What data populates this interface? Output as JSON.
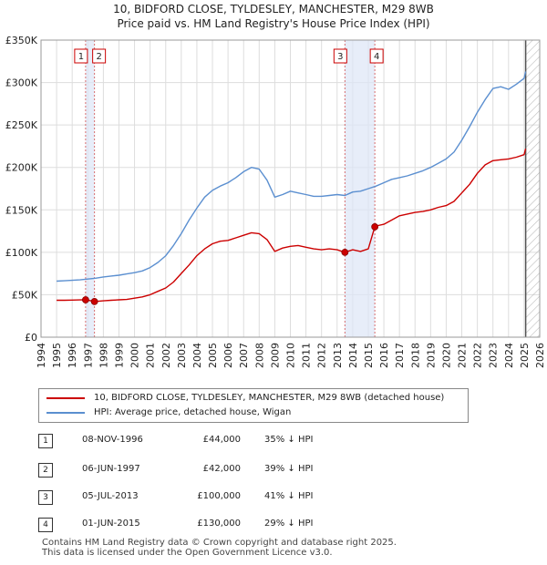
{
  "title_line1": "10, BIDFORD CLOSE, TYLDESLEY, MANCHESTER, M29 8WB",
  "title_line2": "Price paid vs. HM Land Registry's House Price Index (HPI)",
  "chart_data": {
    "type": "line",
    "xlim": [
      1994,
      2026
    ],
    "ylim": [
      0,
      350000
    ],
    "yticks": [
      0,
      50000,
      100000,
      150000,
      200000,
      250000,
      300000,
      350000
    ],
    "ytick_labels": [
      "£0",
      "£50K",
      "£100K",
      "£150K",
      "£200K",
      "£250K",
      "£300K",
      "£350K"
    ],
    "xticks": [
      1994,
      1995,
      1996,
      1997,
      1998,
      1999,
      2000,
      2001,
      2002,
      2003,
      2004,
      2005,
      2006,
      2007,
      2008,
      2009,
      2010,
      2011,
      2012,
      2013,
      2014,
      2015,
      2016,
      2017,
      2018,
      2019,
      2020,
      2021,
      2022,
      2023,
      2024,
      2025,
      2026
    ],
    "grid": true,
    "shaded_ranges": [
      [
        1996.86,
        1997.43
      ],
      [
        2013.5,
        2015.42
      ]
    ],
    "future_hatch_from": 2025.1,
    "series": [
      {
        "name": "10, BIDFORD CLOSE, TYLDESLEY, MANCHESTER, M29 8WB (detached house)",
        "color": "#cc0000",
        "x": [
          1995.0,
          1995.5,
          1996.0,
          1996.5,
          1996.86,
          1997.0,
          1997.43,
          1998.0,
          1998.5,
          1999.0,
          1999.5,
          2000.0,
          2000.5,
          2001.0,
          2001.5,
          2002.0,
          2002.5,
          2003.0,
          2003.5,
          2004.0,
          2004.5,
          2005.0,
          2005.5,
          2006.0,
          2006.5,
          2007.0,
          2007.5,
          2008.0,
          2008.5,
          2009.0,
          2009.5,
          2010.0,
          2010.5,
          2011.0,
          2011.5,
          2012.0,
          2012.5,
          2013.0,
          2013.5,
          2014.0,
          2014.5,
          2015.0,
          2015.42,
          2015.5,
          2016.0,
          2016.5,
          2017.0,
          2017.5,
          2018.0,
          2018.5,
          2019.0,
          2019.5,
          2020.0,
          2020.5,
          2021.0,
          2021.5,
          2022.0,
          2022.5,
          2023.0,
          2023.5,
          2024.0,
          2024.5,
          2025.0,
          2025.1
        ],
        "values": [
          43500,
          43500,
          43700,
          43900,
          44000,
          43700,
          42000,
          42800,
          43500,
          44000,
          44500,
          46000,
          47500,
          50000,
          54000,
          58000,
          65000,
          75000,
          85000,
          96000,
          104000,
          110000,
          113000,
          114000,
          117000,
          120000,
          123000,
          122000,
          115000,
          101000,
          105000,
          107000,
          108000,
          106000,
          104000,
          103000,
          104000,
          103000,
          100000,
          103000,
          101000,
          104000,
          130000,
          131000,
          133000,
          138000,
          143000,
          145000,
          147000,
          148000,
          150000,
          153000,
          155000,
          160000,
          170000,
          180000,
          193000,
          203000,
          208000,
          209000,
          210000,
          212000,
          215000,
          222000
        ]
      },
      {
        "name": "HPI: Average price, detached house, Wigan",
        "color": "#5b8fd0",
        "x": [
          1995.0,
          1995.5,
          1996.0,
          1996.5,
          1997.0,
          1997.5,
          1998.0,
          1998.5,
          1999.0,
          1999.5,
          2000.0,
          2000.5,
          2001.0,
          2001.5,
          2002.0,
          2002.5,
          2003.0,
          2003.5,
          2004.0,
          2004.5,
          2005.0,
          2005.5,
          2006.0,
          2006.5,
          2007.0,
          2007.5,
          2008.0,
          2008.5,
          2009.0,
          2009.5,
          2010.0,
          2010.5,
          2011.0,
          2011.5,
          2012.0,
          2012.5,
          2013.0,
          2013.5,
          2014.0,
          2014.5,
          2015.0,
          2015.5,
          2016.0,
          2016.5,
          2017.0,
          2017.5,
          2018.0,
          2018.5,
          2019.0,
          2019.5,
          2020.0,
          2020.5,
          2021.0,
          2021.5,
          2022.0,
          2022.5,
          2023.0,
          2023.5,
          2024.0,
          2024.5,
          2025.0,
          2025.1
        ],
        "values": [
          66000,
          66500,
          67000,
          67500,
          68500,
          69500,
          71000,
          72000,
          73000,
          74500,
          76000,
          78000,
          82000,
          88000,
          96000,
          108000,
          122000,
          138000,
          152000,
          165000,
          173000,
          178000,
          182000,
          188000,
          195000,
          200000,
          198000,
          185000,
          165000,
          168000,
          172000,
          170000,
          168000,
          166000,
          166000,
          167000,
          168000,
          167000,
          171000,
          172000,
          175000,
          178000,
          182000,
          186000,
          188000,
          190000,
          193000,
          196000,
          200000,
          205000,
          210000,
          218000,
          232000,
          248000,
          265000,
          280000,
          293000,
          295000,
          292000,
          298000,
          305000,
          313000
        ]
      }
    ],
    "sale_markers": [
      {
        "label": "1",
        "year": 1996.86,
        "price": 44000
      },
      {
        "label": "2",
        "year": 1997.43,
        "price": 42000
      },
      {
        "label": "3",
        "year": 2013.5,
        "price": 100000
      },
      {
        "label": "4",
        "year": 2015.42,
        "price": 130000
      }
    ]
  },
  "legend": {
    "red_label": "10, BIDFORD CLOSE, TYLDESLEY, MANCHESTER, M29 8WB (detached house)",
    "blue_label": "HPI: Average price, detached house, Wigan"
  },
  "sales": [
    {
      "num": "1",
      "date": "08-NOV-1996",
      "price": "£44,000",
      "hpi": "35% ↓ HPI"
    },
    {
      "num": "2",
      "date": "06-JUN-1997",
      "price": "£42,000",
      "hpi": "39% ↓ HPI"
    },
    {
      "num": "3",
      "date": "05-JUL-2013",
      "price": "£100,000",
      "hpi": "41% ↓ HPI"
    },
    {
      "num": "4",
      "date": "01-JUN-2015",
      "price": "£130,000",
      "hpi": "29% ↓ HPI"
    }
  ],
  "footer_line1": "Contains HM Land Registry data © Crown copyright and database right 2025.",
  "footer_line2": "This data is licensed under the Open Government Licence v3.0."
}
